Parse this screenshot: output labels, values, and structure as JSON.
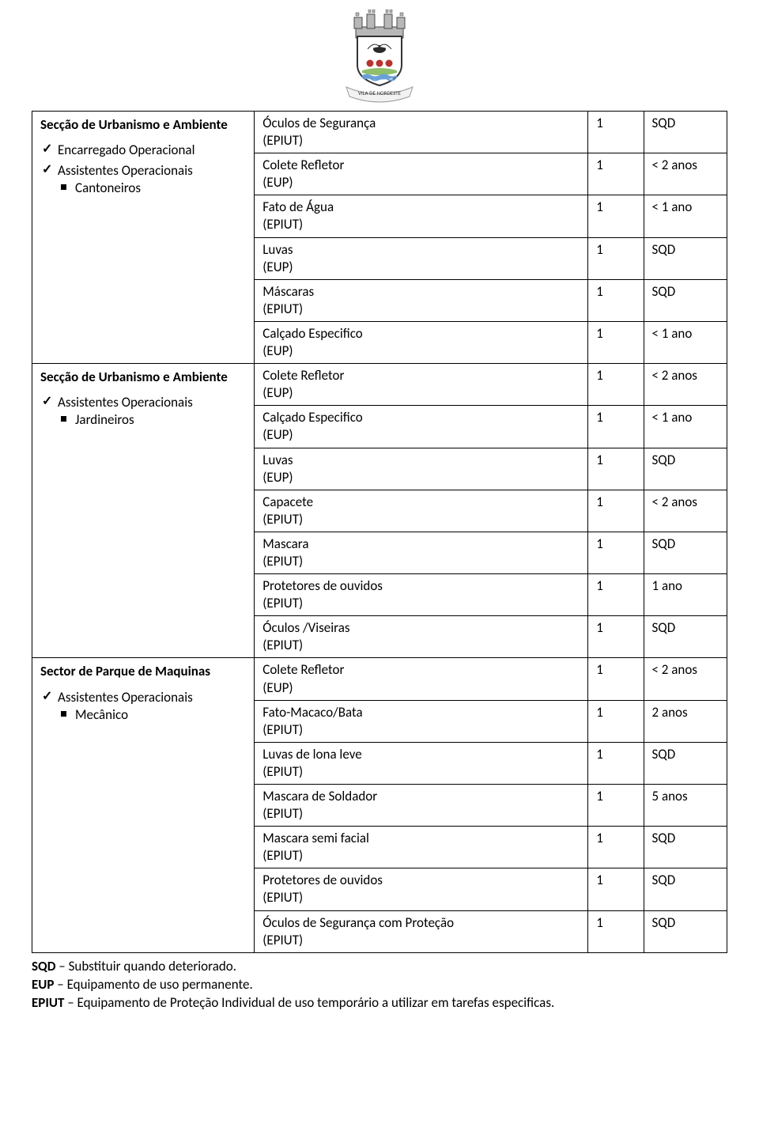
{
  "crest": {
    "ribbon_text": "VILA DE NORDESTE",
    "colors": {
      "wall": "#b8b8b8",
      "wall_outline": "#4a4a4a",
      "shield_outline": "#333333",
      "shield_fill": "#ffffff",
      "bird_body": "#2a2a2a",
      "bird_wings": "#ffffff",
      "flower": "#b8332f",
      "ground_green": "#8fbf6a",
      "sea_blue": "#6aa0d8",
      "ribbon": "#f2f2f2",
      "ribbon_text_color": "#333333"
    }
  },
  "sections": [
    {
      "rows": 6,
      "title": "Secção de Urbanismo e Ambiente",
      "roles": [
        {
          "label": "Encarregado Operacional",
          "sub": []
        },
        {
          "label": "Assistentes Operacionais",
          "sub": [
            "Cantoneiros"
          ]
        }
      ],
      "items": [
        {
          "name": "Óculos de Segurança",
          "paren": "(EPIUT)",
          "qty": "1",
          "freq": "SQD"
        },
        {
          "name": "Colete Refletor",
          "paren": "(EUP)",
          "qty": "1",
          "freq": "< 2 anos"
        },
        {
          "name": "Fato de Água",
          "paren": "(EPIUT)",
          "qty": "1",
          "freq": "< 1 ano"
        },
        {
          "name": "Luvas",
          "paren": "(EUP)",
          "qty": "1",
          "freq": "SQD"
        },
        {
          "name": "Máscaras",
          "paren": "(EPIUT)",
          "qty": "1",
          "freq": "SQD"
        },
        {
          "name": "Calçado Especifico",
          "paren": "(EUP)",
          "qty": "1",
          "freq": "< 1 ano"
        }
      ]
    },
    {
      "rows": 7,
      "title": "Secção de Urbanismo e Ambiente",
      "roles": [
        {
          "label": "Assistentes Operacionais",
          "sub": [
            "Jardineiros"
          ]
        }
      ],
      "items": [
        {
          "name": "Colete Refletor",
          "paren": "(EUP)",
          "qty": "1",
          "freq": "< 2 anos"
        },
        {
          "name": "Calçado Especifico",
          "paren": "(EUP)",
          "qty": "1",
          "freq": "< 1 ano"
        },
        {
          "name": "Luvas",
          "paren": "(EUP)",
          "qty": "1",
          "freq": "SQD"
        },
        {
          "name": "Capacete",
          "paren": "(EPIUT)",
          "qty": "1",
          "freq": "< 2 anos"
        },
        {
          "name": "Mascara",
          "paren": "(EPIUT)",
          "qty": "1",
          "freq": "SQD"
        },
        {
          "name": "Protetores de ouvidos",
          "paren": "(EPIUT)",
          "qty": "1",
          "freq": "1 ano"
        },
        {
          "name": "Óculos /Viseiras",
          "paren": "(EPIUT)",
          "qty": "1",
          "freq": "SQD"
        }
      ]
    },
    {
      "rows": 7,
      "title": "Sector de Parque de Maquinas",
      "roles": [
        {
          "label": "Assistentes Operacionais",
          "sub": [
            "Mecânico"
          ]
        }
      ],
      "items": [
        {
          "name": "Colete Refletor",
          "paren": "(EUP)",
          "qty": "1",
          "freq": "< 2 anos"
        },
        {
          "name": "Fato-Macaco/Bata",
          "paren": "(EPIUT)",
          "qty": "1",
          "freq": "2 anos"
        },
        {
          "name": "Luvas de lona leve",
          "paren": "(EPIUT)",
          "qty": "1",
          "freq": "SQD"
        },
        {
          "name": "Mascara de Soldador",
          "paren": "(EPIUT)",
          "qty": "1",
          "freq": "5 anos"
        },
        {
          "name": "Mascara semi facial",
          "paren": "(EPIUT)",
          "qty": "1",
          "freq": "SQD"
        },
        {
          "name": "Protetores de ouvidos",
          "paren": "(EPIUT)",
          "qty": "1",
          "freq": "SQD"
        },
        {
          "name": "Óculos de Segurança com Proteção",
          "paren": "(EPIUT)",
          "qty": "1",
          "freq": "SQD"
        }
      ]
    }
  ],
  "legend": [
    {
      "abbrev": "SQD",
      "text": " – Substituir quando deteriorado."
    },
    {
      "abbrev": "EUP",
      "text": " – Equipamento de uso permanente."
    },
    {
      "abbrev": "EPIUT",
      "text": " – Equipamento de Proteção Individual de uso temporário a utilizar em tarefas especificas."
    }
  ]
}
